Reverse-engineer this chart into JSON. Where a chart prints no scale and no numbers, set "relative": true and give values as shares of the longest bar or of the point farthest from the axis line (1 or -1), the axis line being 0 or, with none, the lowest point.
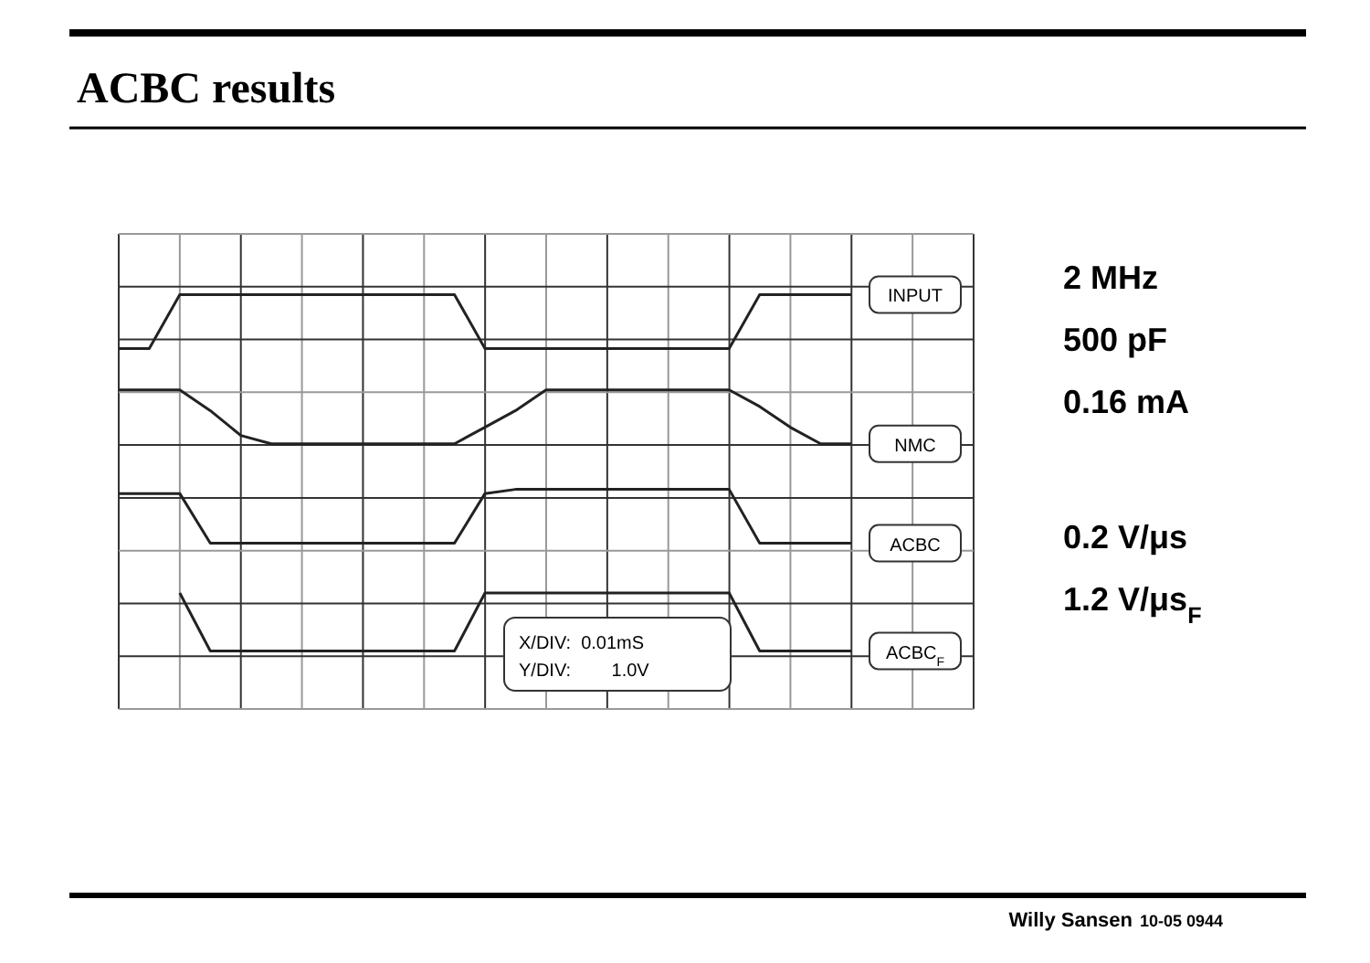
{
  "chart_data": {
    "type": "line",
    "title": "ACBC results",
    "relative": true,
    "grid": true,
    "line_style": "solid",
    "categories": [
      null,
      null,
      null,
      null,
      null,
      null,
      null,
      null,
      null,
      null,
      null,
      null,
      null,
      null,
      null,
      null,
      null,
      null,
      null,
      null,
      null,
      null,
      null,
      null,
      null
    ],
    "series": [
      {
        "name": "INPUT",
        "color": "#222222",
        "values": [
          0.87,
          0.87,
          1.0,
          1.0,
          1.0,
          1.0,
          1.0,
          1.0,
          1.0,
          1.0,
          1.0,
          1.0,
          0.87,
          0.87,
          0.87,
          0.87,
          0.87,
          0.87,
          0.87,
          0.87,
          0.87,
          1.0,
          1.0,
          1.0,
          1.0
        ]
      },
      {
        "name": "NMC",
        "color": "#222222",
        "values": [
          0.77,
          0.77,
          0.77,
          0.72,
          0.66,
          0.64,
          0.64,
          0.64,
          0.64,
          0.64,
          0.64,
          0.64,
          0.68,
          0.72,
          0.77,
          0.77,
          0.77,
          0.77,
          0.77,
          0.77,
          0.77,
          0.73,
          0.68,
          0.64,
          0.64
        ]
      },
      {
        "name": "ACBC",
        "color": "#222222",
        "values": [
          0.52,
          0.52,
          0.52,
          0.4,
          0.4,
          0.4,
          0.4,
          0.4,
          0.4,
          0.4,
          0.4,
          0.4,
          0.52,
          0.53,
          0.53,
          0.53,
          0.53,
          0.53,
          0.53,
          0.53,
          0.53,
          0.4,
          0.4,
          0.4,
          0.4
        ]
      },
      {
        "name": "ACBC$_{F}$",
        "color": "#222222",
        "values": [
          null,
          null,
          0.28,
          0.14,
          0.14,
          0.14,
          0.14,
          0.14,
          0.14,
          0.14,
          0.14,
          0.14,
          0.28,
          0.28,
          0.28,
          0.28,
          0.28,
          0.28,
          0.28,
          0.28,
          0.28,
          0.14,
          0.14,
          0.14,
          0.14
        ]
      }
    ],
    "annotations": [
      "2 MHz",
      "500 pF",
      "0.16 mA",
      "0.2 V/μs",
      "1.2 V/μs$_{F}$",
      "X/DIV:  0.01mS",
      "Y/DIV:        1.0V",
      "Willy Sansen",
      "10-05 0944"
    ]
  }
}
